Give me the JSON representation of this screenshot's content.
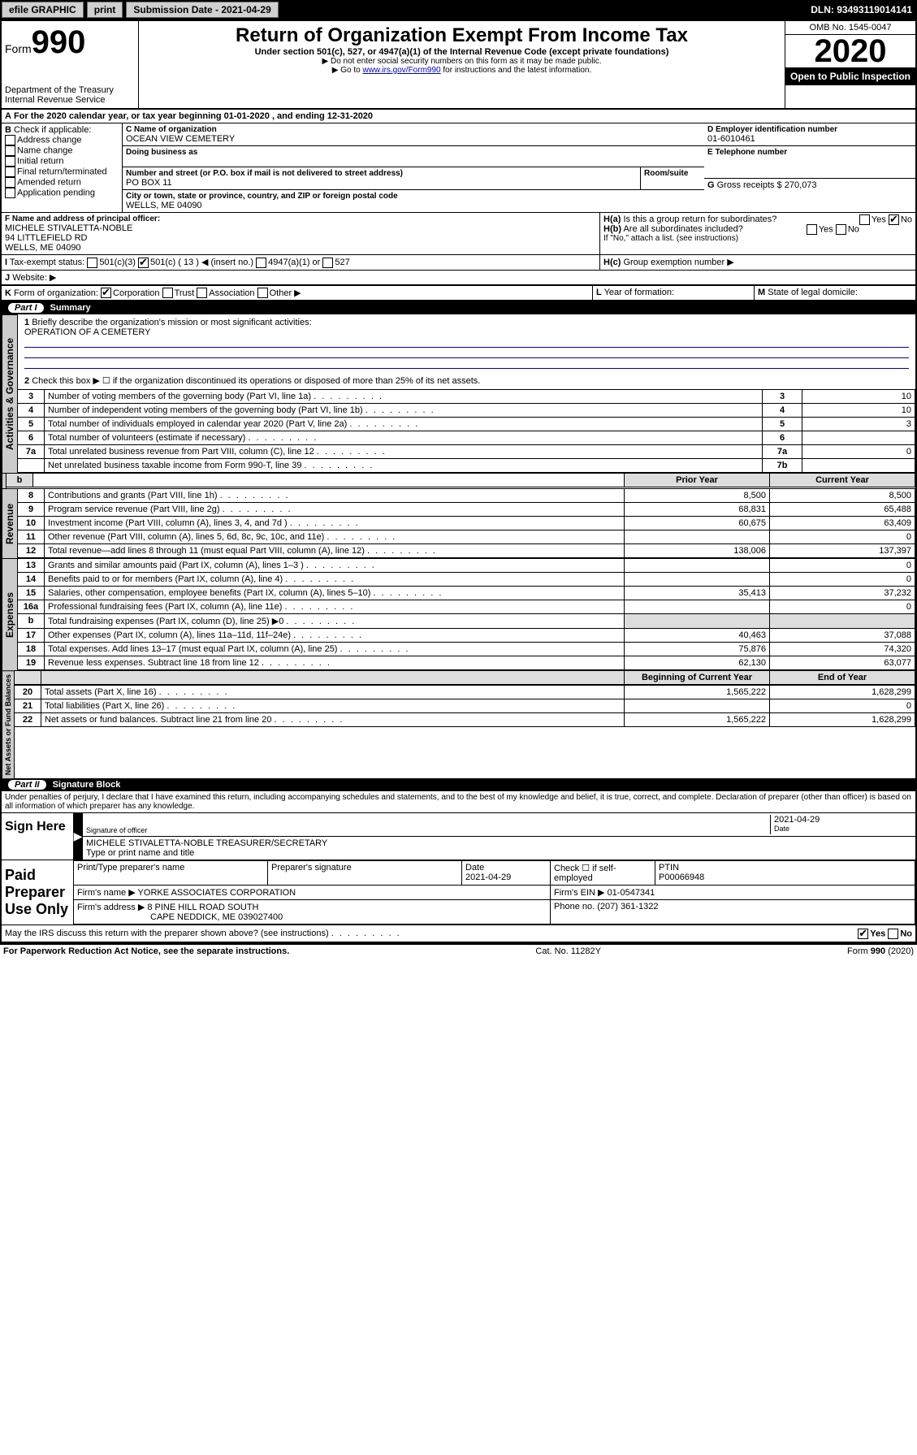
{
  "topbar": {
    "efile": "efile GRAPHIC",
    "print": "print",
    "subdate_label": "Submission Date - 2021-04-29",
    "dln": "DLN: 93493119014141"
  },
  "header": {
    "form_prefix": "Form",
    "form_no": "990",
    "title": "Return of Organization Exempt From Income Tax",
    "subtitle": "Under section 501(c), 527, or 4947(a)(1) of the Internal Revenue Code (except private foundations)",
    "note1": "▶ Do not enter social security numbers on this form as it may be made public.",
    "note2a": "▶ Go to ",
    "note2_link": "www.irs.gov/Form990",
    "note2b": " for instructions and the latest information.",
    "dept1": "Department of the Treasury",
    "dept2": "Internal Revenue Service",
    "omb": "OMB No. 1545-0047",
    "year": "2020",
    "openpub": "Open to Public Inspection"
  },
  "A": {
    "text": "For the 2020 calendar year, or tax year beginning 01-01-2020    , and ending 12-31-2020"
  },
  "B": {
    "label": "Check if applicable:",
    "opts": [
      "Address change",
      "Name change",
      "Initial return",
      "Final return/terminated",
      "Amended return",
      "Application pending"
    ]
  },
  "C": {
    "name_label": "Name of organization",
    "name": "OCEAN VIEW CEMETERY",
    "dba_label": "Doing business as",
    "addr_label": "Number and street (or P.O. box if mail is not delivered to street address)",
    "room_label": "Room/suite",
    "addr": "PO BOX 11",
    "city_label": "City or town, state or province, country, and ZIP or foreign postal code",
    "city": "WELLS, ME  04090"
  },
  "D": {
    "label": "Employer identification number",
    "value": "01-6010461"
  },
  "E": {
    "label": "Telephone number",
    "value": ""
  },
  "G": {
    "label": "Gross receipts $",
    "value": "270,073"
  },
  "F": {
    "label": "Name and address of principal officer:",
    "name": "MICHELE STIVALETTA-NOBLE",
    "addr": "94 LITTLEFIELD RD",
    "city": "WELLS, ME  04090"
  },
  "H": {
    "a": "Is this a group return for subordinates?",
    "b": "Are all subordinates included?",
    "b_note": "If \"No,\" attach a list. (see instructions)",
    "c": "Group exemption number ▶",
    "a_no_checked": true
  },
  "I": {
    "label": "Tax-exempt status:",
    "opt1": "501(c)(3)",
    "opt2": "501(c) ( 13 ) ◀ (insert no.)",
    "opt3": "4947(a)(1) or",
    "opt4": "527",
    "checked": 2
  },
  "J": {
    "label": "Website: ▶",
    "value": ""
  },
  "K": {
    "label": "Form of organization:",
    "opts": [
      "Corporation",
      "Trust",
      "Association",
      "Other ▶"
    ],
    "checked": 0
  },
  "L": {
    "label": "Year of formation:",
    "value": ""
  },
  "M": {
    "label": "State of legal domicile:",
    "value": ""
  },
  "partI": {
    "title": "Summary",
    "q1": "Briefly describe the organization's mission or most significant activities:",
    "q1_ans": "OPERATION OF A CEMETERY",
    "q2": "Check this box ▶ ☐ if the organization discontinued its operations or disposed of more than 25% of its net assets.",
    "lines_top": [
      {
        "n": "3",
        "desc": "Number of voting members of the governing body (Part VI, line 1a)",
        "box": "3",
        "val": "10"
      },
      {
        "n": "4",
        "desc": "Number of independent voting members of the governing body (Part VI, line 1b)",
        "box": "4",
        "val": "10"
      },
      {
        "n": "5",
        "desc": "Total number of individuals employed in calendar year 2020 (Part V, line 2a)",
        "box": "5",
        "val": "3"
      },
      {
        "n": "6",
        "desc": "Total number of volunteers (estimate if necessary)",
        "box": "6",
        "val": ""
      },
      {
        "n": "7a",
        "desc": "Total unrelated business revenue from Part VIII, column (C), line 12",
        "box": "7a",
        "val": "0"
      },
      {
        "n": "",
        "desc": "Net unrelated business taxable income from Form 990-T, line 39",
        "box": "7b",
        "val": ""
      }
    ],
    "col_prior": "Prior Year",
    "col_curr": "Current Year",
    "col_begin": "Beginning of Current Year",
    "col_end": "End of Year",
    "revenue": [
      {
        "n": "8",
        "desc": "Contributions and grants (Part VIII, line 1h)",
        "p": "8,500",
        "c": "8,500"
      },
      {
        "n": "9",
        "desc": "Program service revenue (Part VIII, line 2g)",
        "p": "68,831",
        "c": "65,488"
      },
      {
        "n": "10",
        "desc": "Investment income (Part VIII, column (A), lines 3, 4, and 7d )",
        "p": "60,675",
        "c": "63,409"
      },
      {
        "n": "11",
        "desc": "Other revenue (Part VIII, column (A), lines 5, 6d, 8c, 9c, 10c, and 11e)",
        "p": "",
        "c": "0"
      },
      {
        "n": "12",
        "desc": "Total revenue—add lines 8 through 11 (must equal Part VIII, column (A), line 12)",
        "p": "138,006",
        "c": "137,397"
      }
    ],
    "expenses": [
      {
        "n": "13",
        "desc": "Grants and similar amounts paid (Part IX, column (A), lines 1–3 )",
        "p": "",
        "c": "0"
      },
      {
        "n": "14",
        "desc": "Benefits paid to or for members (Part IX, column (A), line 4)",
        "p": "",
        "c": "0"
      },
      {
        "n": "15",
        "desc": "Salaries, other compensation, employee benefits (Part IX, column (A), lines 5–10)",
        "p": "35,413",
        "c": "37,232"
      },
      {
        "n": "16a",
        "desc": "Professional fundraising fees (Part IX, column (A), line 11e)",
        "p": "",
        "c": "0"
      },
      {
        "n": "b",
        "desc": "Total fundraising expenses (Part IX, column (D), line 25) ▶0",
        "p": "shade",
        "c": "shade"
      },
      {
        "n": "17",
        "desc": "Other expenses (Part IX, column (A), lines 11a–11d, 11f–24e)",
        "p": "40,463",
        "c": "37,088"
      },
      {
        "n": "18",
        "desc": "Total expenses. Add lines 13–17 (must equal Part IX, column (A), line 25)",
        "p": "75,876",
        "c": "74,320"
      },
      {
        "n": "19",
        "desc": "Revenue less expenses. Subtract line 18 from line 12",
        "p": "62,130",
        "c": "63,077"
      }
    ],
    "netassets": [
      {
        "n": "20",
        "desc": "Total assets (Part X, line 16)",
        "p": "1,565,222",
        "c": "1,628,299"
      },
      {
        "n": "21",
        "desc": "Total liabilities (Part X, line 26)",
        "p": "",
        "c": "0"
      },
      {
        "n": "22",
        "desc": "Net assets or fund balances. Subtract line 21 from line 20",
        "p": "1,565,222",
        "c": "1,628,299"
      }
    ]
  },
  "partII": {
    "title": "Signature Block",
    "perjury": "Under penalties of perjury, I declare that I have examined this return, including accompanying schedules and statements, and to the best of my knowledge and belief, it is true, correct, and complete. Declaration of preparer (other than officer) is based on all information of which preparer has any knowledge.",
    "sign_here": "Sign Here",
    "sig_officer": "Signature of officer",
    "sig_date": "2021-04-29",
    "date_lbl": "Date",
    "typed": "MICHELE STIVALETTA-NOBLE  TREASURER/SECRETARY",
    "typed_lbl": "Type or print name and title",
    "paid": "Paid Preparer Use Only",
    "h_prep": "Print/Type preparer's name",
    "h_sig": "Preparer's signature",
    "h_date": "Date",
    "h_check": "Check ☐ if self-employed",
    "h_ptin": "PTIN",
    "prep_date": "2021-04-29",
    "ptin": "P00066948",
    "firm_name_lbl": "Firm's name     ▶",
    "firm_name": "YORKE ASSOCIATES CORPORATION",
    "firm_ein_lbl": "Firm's EIN ▶",
    "firm_ein": "01-0547341",
    "firm_addr_lbl": "Firm's address ▶",
    "firm_addr1": "8 PINE HILL ROAD SOUTH",
    "firm_addr2": "CAPE NEDDICK, ME  039027400",
    "phone_lbl": "Phone no.",
    "phone": "(207) 361-1322",
    "discuss": "May the IRS discuss this return with the preparer shown above? (see instructions)",
    "yes_checked": true
  },
  "footer": {
    "left": "For Paperwork Reduction Act Notice, see the separate instructions.",
    "mid": "Cat. No. 11282Y",
    "right": "Form 990 (2020)"
  },
  "vtabs": {
    "gov": "Activities & Governance",
    "rev": "Revenue",
    "exp": "Expenses",
    "net": "Net Assets or Fund Balances"
  }
}
